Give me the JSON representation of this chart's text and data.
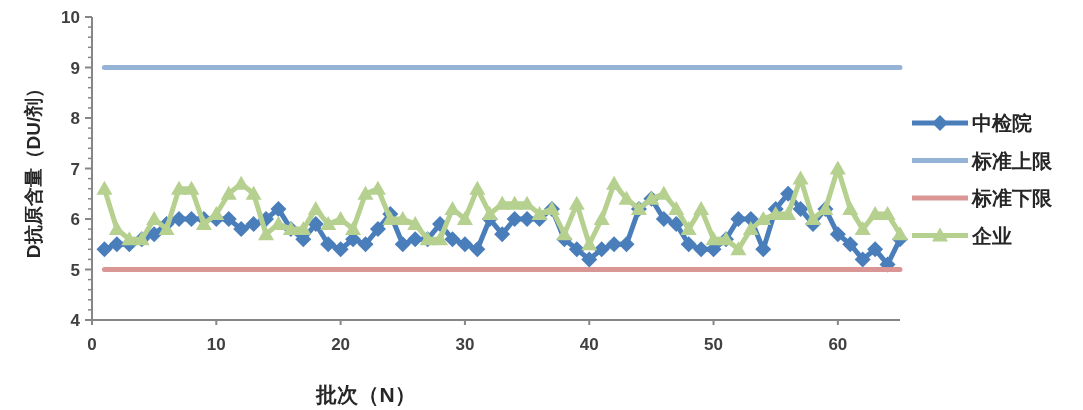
{
  "chart_data": {
    "type": "line",
    "xlabel": "批次（N）",
    "ylabel": "D抗原含量（DU/剂）",
    "xlim": [
      0,
      65
    ],
    "xticks": [
      0,
      10,
      20,
      30,
      40,
      50,
      60
    ],
    "ylim": [
      4,
      10
    ],
    "yticks": [
      4,
      5,
      6,
      7,
      8,
      9,
      10
    ],
    "legend": "right",
    "grid": false,
    "series": [
      {
        "name": "中检院",
        "color": "#4a7ebb",
        "marker": "diamond",
        "x": [
          1,
          2,
          3,
          4,
          5,
          6,
          7,
          8,
          9,
          10,
          11,
          12,
          13,
          14,
          15,
          16,
          17,
          18,
          19,
          20,
          21,
          22,
          23,
          24,
          25,
          26,
          27,
          28,
          29,
          30,
          31,
          32,
          33,
          34,
          35,
          36,
          37,
          38,
          39,
          40,
          41,
          42,
          43,
          44,
          45,
          46,
          47,
          48,
          49,
          50,
          51,
          52,
          53,
          54,
          55,
          56,
          57,
          58,
          59,
          60,
          61,
          62,
          63,
          64,
          65
        ],
        "values": [
          5.4,
          5.5,
          5.5,
          5.6,
          5.7,
          5.9,
          6.0,
          6.0,
          6.0,
          6.0,
          6.0,
          5.8,
          5.9,
          6.0,
          6.2,
          5.8,
          5.6,
          5.9,
          5.5,
          5.4,
          5.6,
          5.5,
          5.8,
          6.1,
          5.5,
          5.6,
          5.6,
          5.9,
          5.6,
          5.5,
          5.4,
          6.0,
          5.7,
          6.0,
          6.0,
          6.0,
          6.2,
          5.6,
          5.4,
          5.2,
          5.4,
          5.5,
          5.5,
          6.2,
          6.4,
          6.0,
          5.9,
          5.5,
          5.4,
          5.4,
          5.6,
          6.0,
          6.0,
          5.4,
          6.2,
          6.5,
          6.2,
          5.9,
          6.2,
          5.7,
          5.5,
          5.2,
          5.4,
          5.1,
          5.6
        ]
      },
      {
        "name": "标准上限",
        "color": "#95b3d7",
        "marker": "none",
        "x": [
          1,
          65
        ],
        "values": [
          9,
          9
        ]
      },
      {
        "name": "标准下限",
        "color": "#d99694",
        "marker": "none",
        "x": [
          1,
          65
        ],
        "values": [
          5,
          5
        ]
      },
      {
        "name": "企业",
        "color": "#b5d08f",
        "marker": "triangle",
        "x": [
          1,
          2,
          3,
          4,
          5,
          6,
          7,
          8,
          9,
          10,
          11,
          12,
          13,
          14,
          15,
          16,
          17,
          18,
          19,
          20,
          21,
          22,
          23,
          24,
          25,
          26,
          27,
          28,
          29,
          30,
          31,
          32,
          33,
          34,
          35,
          36,
          37,
          38,
          39,
          40,
          41,
          42,
          43,
          44,
          45,
          46,
          47,
          48,
          49,
          50,
          51,
          52,
          53,
          54,
          55,
          56,
          57,
          58,
          59,
          60,
          61,
          62,
          63,
          64,
          65
        ],
        "values": [
          6.6,
          5.8,
          5.6,
          5.6,
          6.0,
          5.8,
          6.6,
          6.6,
          5.9,
          6.1,
          6.5,
          6.7,
          6.5,
          5.7,
          5.9,
          5.8,
          5.8,
          6.2,
          5.9,
          6.0,
          5.8,
          6.5,
          6.6,
          6.0,
          6.0,
          5.9,
          5.6,
          5.6,
          6.2,
          6.0,
          6.6,
          6.1,
          6.3,
          6.3,
          6.3,
          6.1,
          6.2,
          5.7,
          6.3,
          5.5,
          6.0,
          6.7,
          6.4,
          6.2,
          6.4,
          6.5,
          6.2,
          5.8,
          6.2,
          5.6,
          5.6,
          5.4,
          5.8,
          6.0,
          6.1,
          6.1,
          6.8,
          6.0,
          6.2,
          7.0,
          6.2,
          5.8,
          6.1,
          6.1,
          5.7
        ]
      }
    ]
  }
}
